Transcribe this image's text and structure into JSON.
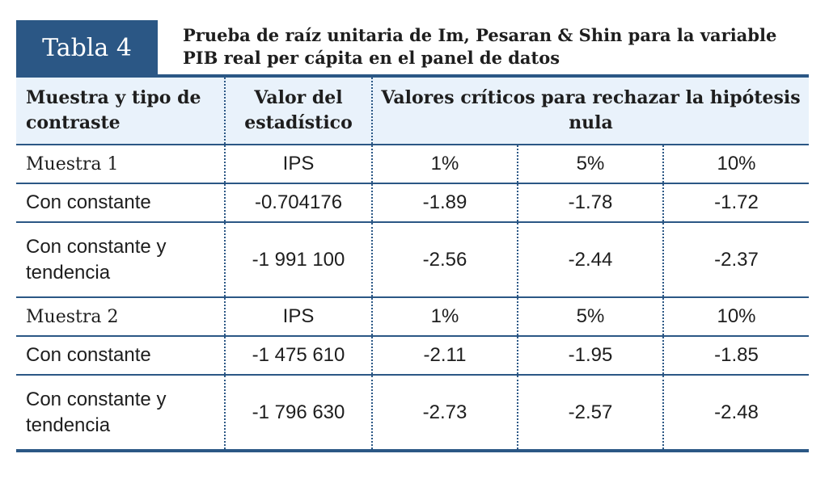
{
  "header": {
    "label": "Tabla 4",
    "title": "Prueba de raíz unitaria de Im, Pesaran & Shin para la variable PIB real per cápita en el panel de datos"
  },
  "table": {
    "columns": [
      "Muestra y tipo de contraste",
      "Valor del estadístico",
      "Valores críticos para rechazar la hipótesis nula"
    ],
    "sections": [
      {
        "name": "Muestra 1",
        "statistic": "IPS",
        "levels": [
          "1%",
          "5%",
          "10%"
        ],
        "rows": [
          [
            "Con constante",
            "-0.704176",
            "-1.89",
            "-1.78",
            "-1.72"
          ],
          [
            "Con constante y tendencia",
            "-1 991 100",
            "-2.56",
            "-2.44",
            "-2.37"
          ]
        ]
      },
      {
        "name": "Muestra 2",
        "statistic": "IPS",
        "levels": [
          "1%",
          "5%",
          "10%"
        ],
        "rows": [
          [
            "Con constante",
            "-1 475 610",
            "-2.11",
            "-1.95",
            "-1.85"
          ],
          [
            "Con constante y tendencia",
            "-1 796 630",
            "-2.73",
            "-2.57",
            "-2.48"
          ]
        ]
      }
    ]
  }
}
